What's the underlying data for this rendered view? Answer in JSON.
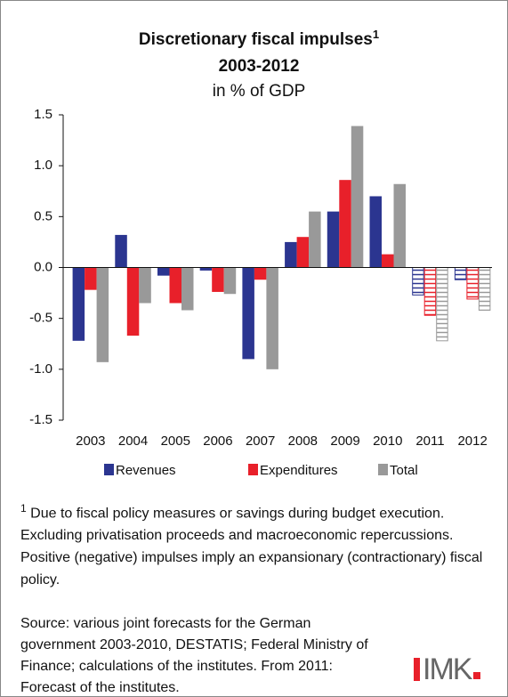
{
  "chart_data": {
    "type": "bar",
    "title": "Discretionary fiscal impulses",
    "title_note_marker": "1",
    "title_line2": "2003-2012",
    "subtitle": "in % of GDP",
    "categories": [
      "2003",
      "2004",
      "2005",
      "2006",
      "2007",
      "2008",
      "2009",
      "2010",
      "2011",
      "2012"
    ],
    "hatched": [
      false,
      false,
      false,
      false,
      false,
      false,
      false,
      false,
      true,
      true
    ],
    "series": [
      {
        "name": "Revenues",
        "color": "#2b3590",
        "values": [
          -0.72,
          0.32,
          -0.08,
          -0.03,
          -0.9,
          0.25,
          0.55,
          0.7,
          -0.27,
          -0.12
        ]
      },
      {
        "name": "Expenditures",
        "color": "#e8202a",
        "values": [
          -0.22,
          -0.67,
          -0.35,
          -0.24,
          -0.12,
          0.3,
          0.86,
          0.13,
          -0.47,
          -0.31
        ]
      },
      {
        "name": "Total",
        "color": "#999999",
        "values": [
          -0.93,
          -0.35,
          -0.42,
          -0.26,
          -1.0,
          0.55,
          1.39,
          0.82,
          -0.72,
          -0.42
        ]
      }
    ],
    "ylim": [
      -1.5,
      1.5
    ],
    "yticks": [
      1.5,
      {
        "value": 1,
        "label": "1.0"
      },
      0.5,
      {
        "value": 0,
        "label": "0.0"
      },
      -0.5,
      {
        "value": -1,
        "label": "-1.0"
      },
      -1.5
    ]
  },
  "footnote": {
    "marker": "1",
    "text": "Due to fiscal policy measures or savings during budget execution. Excluding privatisation proceeds and macroeconomic repercussions. Positive (negative) impulses imply an expansionary (contractionary) fiscal policy."
  },
  "source": "Source: various joint forecasts for the German government 2003-2010, DESTATIS; Federal Ministry of Finance; calculations of the institutes. From 2011: Forecast of the institutes.",
  "logo": "IMK"
}
